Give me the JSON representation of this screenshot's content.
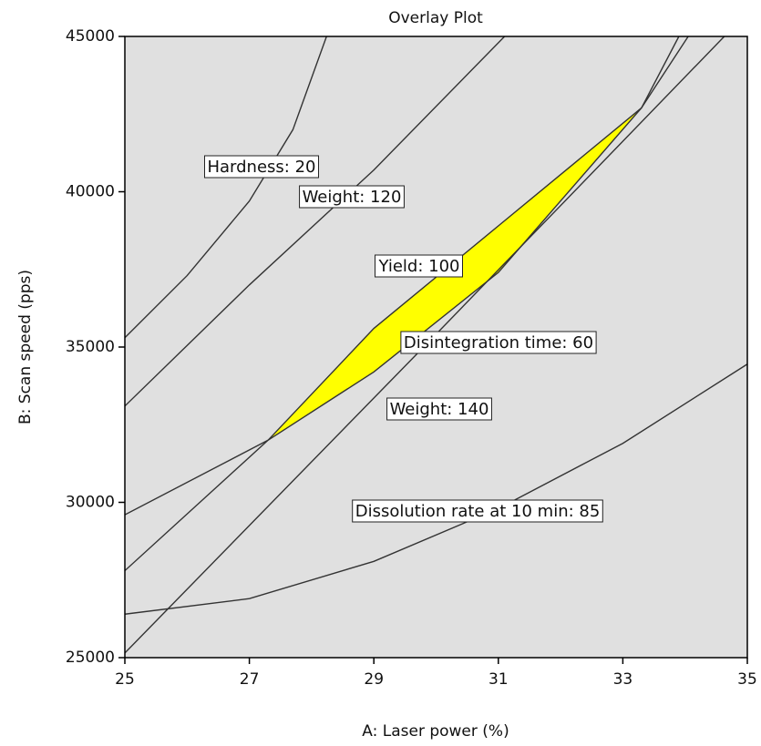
{
  "chart_data": {
    "type": "contour-overlay",
    "title": "Overlay Plot",
    "x_label": "A: Laser power (%)",
    "y_label": "B: Scan speed (pps)",
    "xlim": [
      25,
      35
    ],
    "ylim": [
      25000,
      45000
    ],
    "xticks": [
      25,
      27,
      29,
      31,
      33,
      35
    ],
    "yticks": [
      25000,
      30000,
      35000,
      40000,
      45000
    ],
    "background": "#e0e0e0",
    "line_color": "#333333",
    "region": {
      "color": "#ffff00",
      "x": [
        27.3,
        29,
        31,
        33.3,
        31,
        29
      ],
      "y": [
        32000,
        35600,
        38900,
        42700,
        37400,
        34200
      ]
    },
    "series": [
      {
        "name": "Hardness: 20",
        "x": [
          25,
          26,
          27,
          27.7,
          28.24
        ],
        "y": [
          35300,
          37300,
          39700,
          42000,
          45000
        ]
      },
      {
        "name": "Weight: 120",
        "x": [
          25,
          27,
          29,
          31.1
        ],
        "y": [
          33100,
          37000,
          40700,
          45000
        ]
      },
      {
        "name": "Yield: 100",
        "x": [
          25,
          27.3,
          29,
          31,
          33.3,
          34.05
        ],
        "y": [
          27800,
          32000,
          35600,
          38900,
          42700,
          45000
        ]
      },
      {
        "name": "Disintegration time: 60",
        "x": [
          25,
          27.3,
          29,
          31,
          33.3,
          33.9
        ],
        "y": [
          29600,
          32000,
          34200,
          37400,
          42700,
          45000
        ]
      },
      {
        "name": "Weight: 140",
        "x": [
          25,
          29.8,
          34.63
        ],
        "y": [
          25150,
          35000,
          45000
        ]
      },
      {
        "name": "Dissolution rate at 10 min: 85",
        "x": [
          25,
          27,
          29,
          31,
          33,
          35
        ],
        "y": [
          26400,
          26900,
          28100,
          29800,
          31900,
          34450
        ]
      }
    ]
  }
}
